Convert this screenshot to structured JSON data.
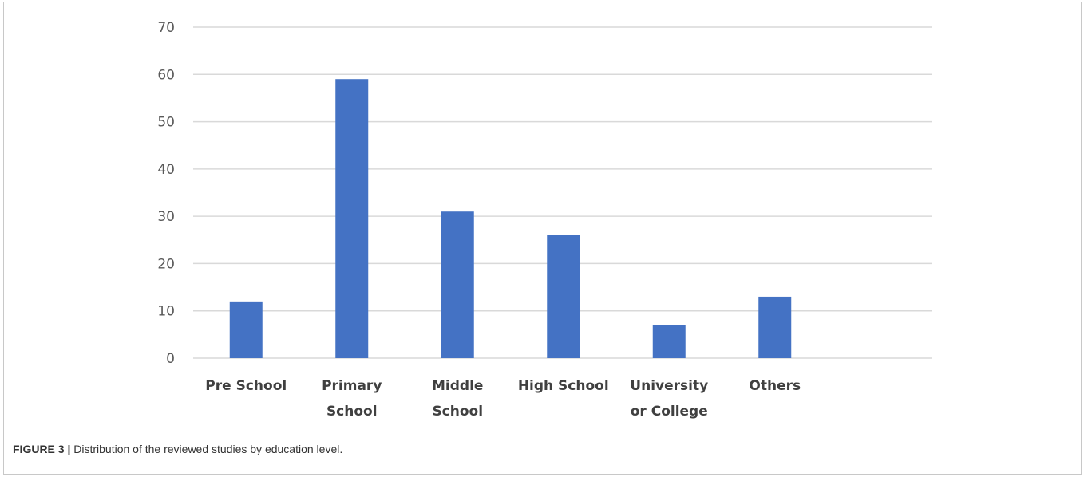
{
  "figure": {
    "label": "FIGURE 3 |",
    "caption": "Distribution of the reviewed studies by education level."
  },
  "chart_data": {
    "type": "bar",
    "categories": [
      [
        "Pre School"
      ],
      [
        "Primary",
        "School"
      ],
      [
        "Middle",
        "School"
      ],
      [
        "High School"
      ],
      [
        "University",
        "or College"
      ],
      [
        "Others"
      ]
    ],
    "values": [
      12,
      59,
      31,
      26,
      7,
      13
    ],
    "ylim": [
      0,
      70
    ],
    "yticks": [
      0,
      10,
      20,
      30,
      40,
      50,
      60,
      70
    ],
    "grid": true,
    "bar_color": "#4472c4",
    "grid_color": "#d9d9d9",
    "title": "",
    "xlabel": "",
    "ylabel": ""
  }
}
